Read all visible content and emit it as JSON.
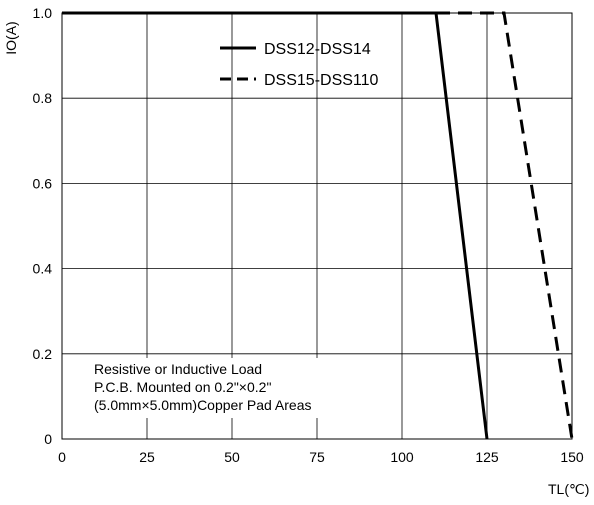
{
  "chart_data": {
    "type": "line",
    "title": "",
    "xlabel": "TL(℃)",
    "ylabel": "IO(A)",
    "xlim": [
      0,
      150
    ],
    "ylim": [
      0,
      1.0
    ],
    "x_ticks": [
      0,
      25,
      50,
      75,
      100,
      125,
      150
    ],
    "y_ticks": [
      0,
      0.2,
      0.4,
      0.6,
      0.8,
      1.0
    ],
    "x_tick_labels": [
      "0",
      "25",
      "50",
      "75",
      "100",
      "125",
      "150"
    ],
    "y_tick_labels": [
      "0",
      "0.2",
      "0.4",
      "0.6",
      "0.8",
      "1.0"
    ],
    "grid": true,
    "legend_position": "top-right",
    "series": [
      {
        "name": "DSS12-DSS14",
        "style": "solid",
        "x": [
          0,
          110,
          125
        ],
        "y": [
          1.0,
          1.0,
          0
        ]
      },
      {
        "name": "DSS15-DSS110",
        "style": "dashed",
        "x": [
          0,
          130,
          150
        ],
        "y": [
          1.0,
          1.0,
          0
        ]
      }
    ],
    "annotation": [
      "Resistive or Inductive Load",
      "P.C.B. Mounted on 0.2\"×0.2\"",
      "(5.0mm×5.0mm)Copper Pad Areas"
    ],
    "colors": {
      "line": "#000000",
      "grid": "#000000",
      "background": "#ffffff"
    }
  }
}
